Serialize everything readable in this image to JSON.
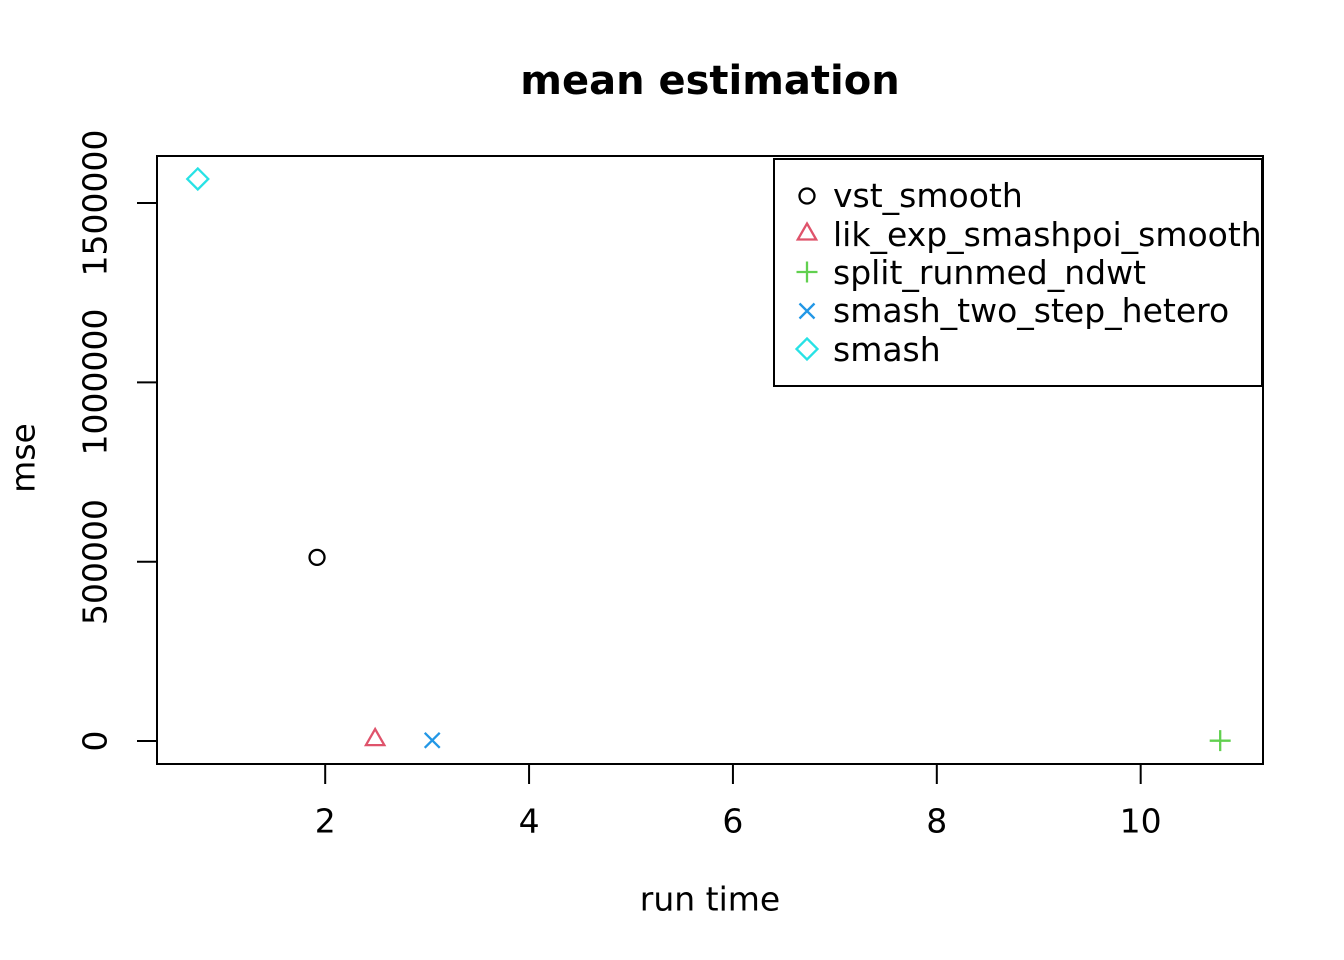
{
  "chart_data": {
    "type": "scatter",
    "title": "mean estimation",
    "xlabel": "run time",
    "ylabel": "mse",
    "xlim": [
      0.35,
      11.2
    ],
    "ylim": [
      -64000,
      1631000
    ],
    "xticks": [
      2,
      4,
      6,
      8,
      10
    ],
    "xtick_labels": [
      "2",
      "4",
      "6",
      "8",
      "10"
    ],
    "yticks": [
      0,
      500000,
      1000000,
      1500000
    ],
    "ytick_labels": [
      "0",
      "500000",
      "1000000",
      "1500000"
    ],
    "grid": false,
    "legend_position": "topright",
    "axis_color": "#000000",
    "background_color": "#ffffff",
    "series": [
      {
        "name": "vst_smooth",
        "marker": "circle",
        "color": "#000000",
        "points": [
          {
            "x": 1.92,
            "y": 512000
          }
        ]
      },
      {
        "name": "lik_exp_smashpoi_smooth",
        "marker": "triangle",
        "color": "#DF536B",
        "points": [
          {
            "x": 2.49,
            "y": 4000
          }
        ]
      },
      {
        "name": "split_runmed_ndwt",
        "marker": "plus",
        "color": "#61D04F",
        "points": [
          {
            "x": 10.78,
            "y": 1000
          }
        ]
      },
      {
        "name": "smash_two_step_hetero",
        "marker": "x",
        "color": "#2297E6",
        "points": [
          {
            "x": 3.05,
            "y": 2000
          }
        ]
      },
      {
        "name": "smash",
        "marker": "diamond",
        "color": "#28E2E5",
        "points": [
          {
            "x": 0.75,
            "y": 1567000
          }
        ]
      }
    ]
  }
}
